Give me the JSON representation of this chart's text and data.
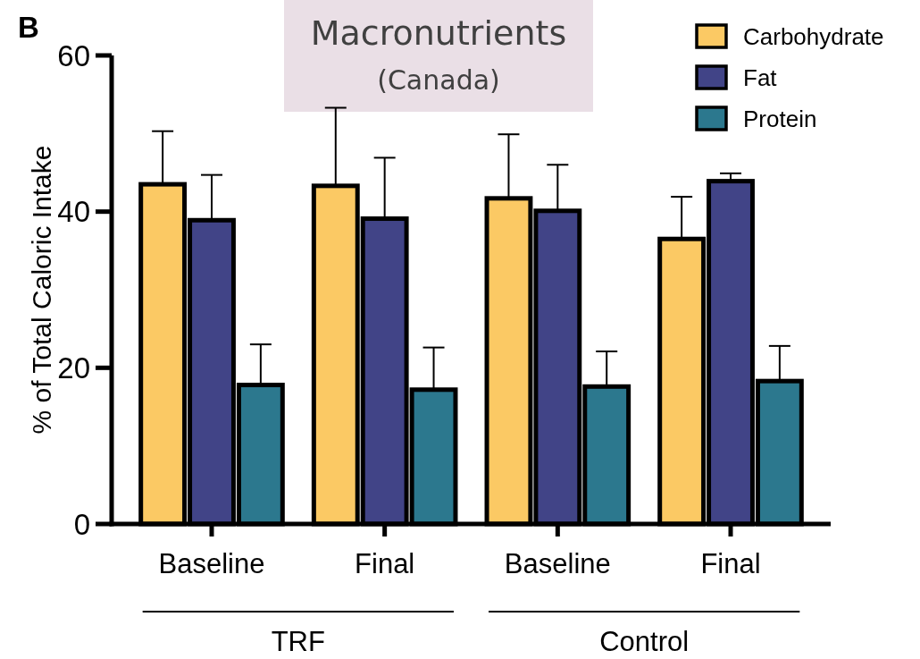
{
  "chart_data": {
    "type": "bar",
    "title": "Macronutrients",
    "subtitle": "(Canada)",
    "ylabel": "% of Total Caloric Intake",
    "categories": [
      "Baseline",
      "Final",
      "Baseline",
      "Final"
    ],
    "series": [
      {
        "name": "Carbohydrate",
        "color": "#fbc964",
        "values": [
          43.5,
          43.3,
          41.7,
          36.5
        ],
        "errors": [
          6.8,
          10,
          8.2,
          5.4
        ]
      },
      {
        "name": "Fat",
        "color": "#414487",
        "values": [
          38.9,
          39.1,
          40.1,
          43.9
        ],
        "errors": [
          5.8,
          7.8,
          5.9,
          1.0
        ]
      },
      {
        "name": "Protein",
        "color": "#2c788e",
        "values": [
          17.8,
          17.2,
          17.6,
          18.3
        ],
        "errors": [
          5.2,
          5.4,
          4.5,
          4.5
        ]
      }
    ],
    "ylim": [
      0,
      60
    ],
    "yticks": [
      0,
      20,
      40,
      60
    ],
    "grid": false,
    "legend": "top right",
    "annotations": [
      "B",
      "TRF",
      "Control"
    ]
  }
}
